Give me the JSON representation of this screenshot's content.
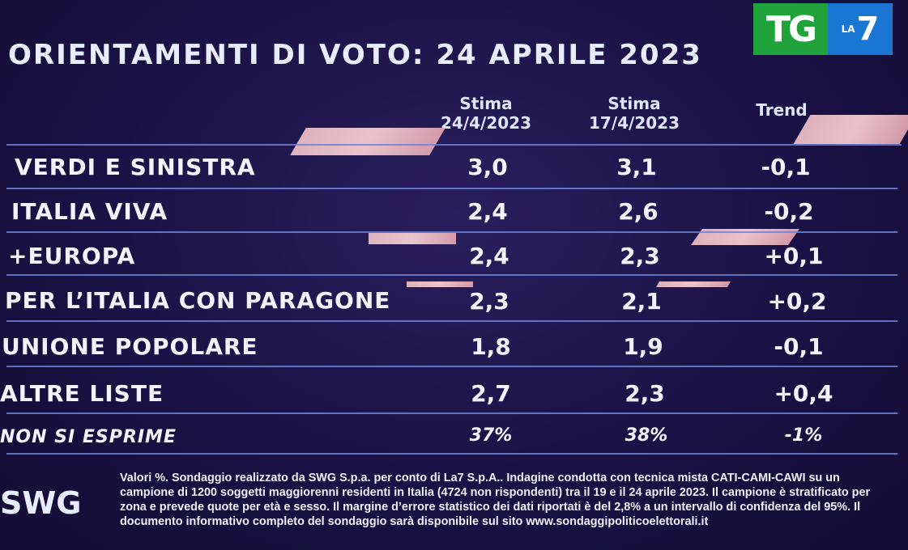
{
  "header": {
    "title": "ORIENTAMENTI DI VOTO: 24 APRILE 2023",
    "logo": {
      "tg": "TG",
      "la": "LA",
      "seven": "7"
    }
  },
  "table": {
    "columns": [
      {
        "line1": "Stima",
        "line2": "24/4/2023"
      },
      {
        "line1": "Stima",
        "line2": "17/4/2023"
      },
      {
        "line1": "Trend",
        "line2": ""
      }
    ],
    "rows": [
      {
        "party": "VERDI E SINISTRA",
        "v1": "3,0",
        "v2": "3,1",
        "trend": "-0,1"
      },
      {
        "party": "ITALIA VIVA",
        "v1": "2,4",
        "v2": "2,6",
        "trend": "-0,2"
      },
      {
        "party": "+EUROPA",
        "v1": "2,4",
        "v2": "2,3",
        "trend": "+0,1"
      },
      {
        "party": "PER L’ITALIA CON PARAGONE",
        "v1": "2,3",
        "v2": "2,1",
        "trend": "+0,2"
      },
      {
        "party": "UNIONE POPOLARE",
        "v1": "1,8",
        "v2": "1,9",
        "trend": "-0,1"
      },
      {
        "party": "ALTRE LISTE",
        "v1": "2,7",
        "v2": "2,3",
        "trend": "+0,4"
      }
    ],
    "footer_row": {
      "party": "NON SI ESPRIME",
      "v1": "37%",
      "v2": "38%",
      "trend": "-1%"
    }
  },
  "footer": {
    "brand": "SWG",
    "note": "Valori %. Sondaggio realizzato da SWG S.p.a. per conto di La7 S.p.A.. Indagine condotta con tecnica mista CATI-CAMI-CAWI su un campione di 1200 soggetti maggiorenni residenti in Italia (4724 non rispondenti) tra il 19 e il 24 aprile 2023. Il campione è stratificato per zona e prevede quote per età e sesso. Il margine d’errore statistico dei dati riportati è del 2,8% a un intervallo di confidenza del 95%. Il documento informativo completo del sondaggio sarà disponibile sul sito www.sondaggipoliticoelettorali.it"
  }
}
